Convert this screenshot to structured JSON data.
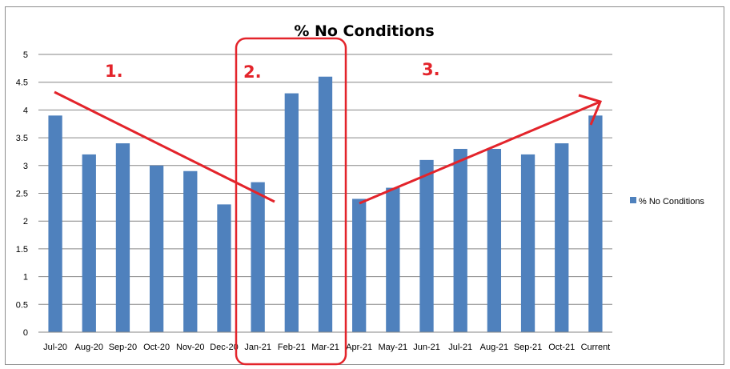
{
  "chart_data": {
    "type": "bar",
    "title": "% No Conditions",
    "xlabel": "",
    "ylabel": "",
    "categories": [
      "Jul-20",
      "Aug-20",
      "Sep-20",
      "Oct-20",
      "Nov-20",
      "Dec-20",
      "Jan-21",
      "Feb-21",
      "Mar-21",
      "Apr-21",
      "May-21",
      "Jun-21",
      "Jul-21",
      "Aug-21",
      "Sep-21",
      "Oct-21",
      "Current"
    ],
    "series": [
      {
        "name": "% No Conditions",
        "color": "#4f81bd",
        "values": [
          3.9,
          3.2,
          3.4,
          3.0,
          2.9,
          2.3,
          2.7,
          4.3,
          4.6,
          2.4,
          2.6,
          3.1,
          3.3,
          3.3,
          3.2,
          3.4,
          3.9
        ]
      }
    ],
    "ylim": [
      0,
      5
    ],
    "yticks": [
      "0",
      "0.5",
      "1",
      "1.5",
      "2",
      "2.5",
      "3",
      "3.5",
      "4",
      "4.5",
      "5"
    ],
    "grid": true,
    "legend_position": "right",
    "annotations": [
      {
        "label": "1.",
        "color": "#e3242b"
      },
      {
        "label": "2.",
        "color": "#e3242b"
      },
      {
        "label": "3.",
        "color": "#e3242b"
      }
    ]
  }
}
